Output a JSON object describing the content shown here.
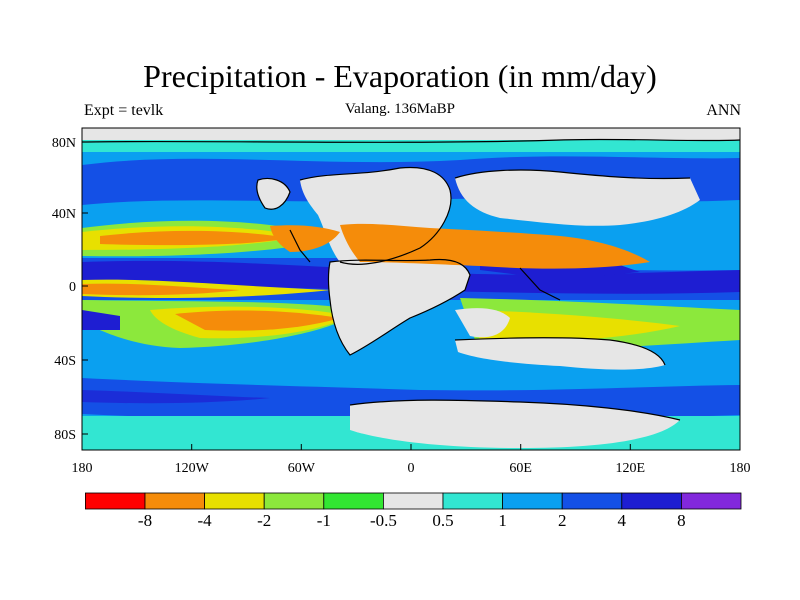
{
  "header": {
    "title": "Precipitation - Evaporation (in mm/day)",
    "subtitle": "Valang. 136MaBP",
    "left_label": "Expt = tevlk",
    "right_label": "ANN"
  },
  "axes": {
    "x_ticks": [
      "180",
      "120W",
      "60W",
      "0",
      "60E",
      "120E",
      "180"
    ],
    "y_ticks": [
      "80N",
      "40N",
      "0",
      "40S",
      "80S"
    ]
  },
  "colorbar": {
    "colors": [
      "#ff0000",
      "#f58c0a",
      "#e8e000",
      "#8ce83c",
      "#32e632",
      "#e6e6e6",
      "#32e6d2",
      "#0aa0f0",
      "#1450e6",
      "#1e1ed2",
      "#8228dc"
    ],
    "labels": [
      "-8",
      "-4",
      "-2",
      "-1",
      "-0.5",
      "0.5",
      "1",
      "2",
      "4",
      "8"
    ]
  },
  "palette": {
    "land": "#e6e6e6",
    "coastline": "#000000",
    "frame": "#000000"
  }
}
